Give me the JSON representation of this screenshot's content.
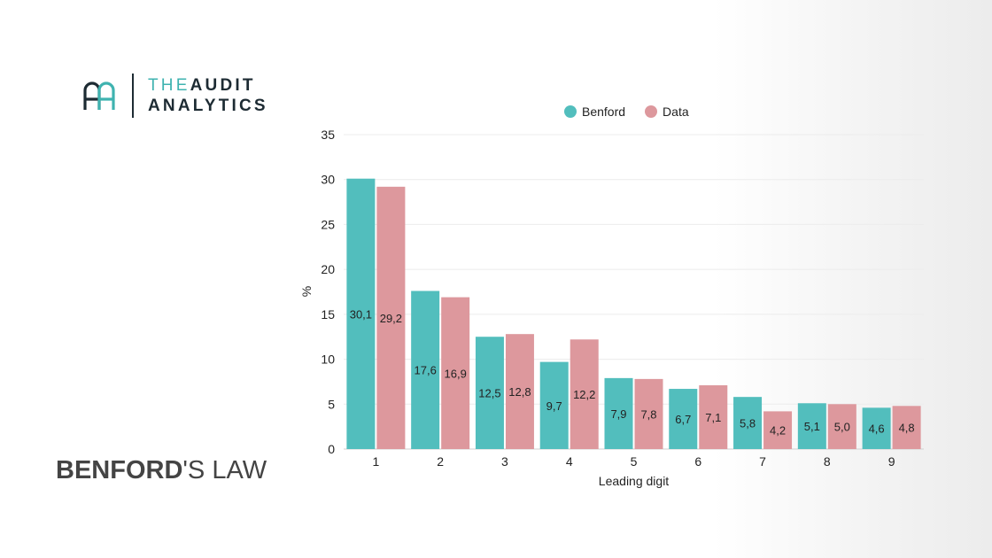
{
  "logo": {
    "text_part1": "THE",
    "text_part2": "AUDIT",
    "text_line2": "ANALYTICS",
    "colors": {
      "teal": "#3fb3b0",
      "dark": "#1d2b33"
    }
  },
  "page_title": {
    "bold": "BENFORD",
    "regular": "'S LAW"
  },
  "chart_data": {
    "type": "bar",
    "categories": [
      "1",
      "2",
      "3",
      "4",
      "5",
      "6",
      "7",
      "8",
      "9"
    ],
    "series": [
      {
        "name": "Benford",
        "color": "#52bebd",
        "values": [
          30.1,
          17.6,
          12.5,
          9.7,
          7.9,
          6.7,
          5.8,
          5.1,
          4.6
        ],
        "labels": [
          "30,1",
          "17,6",
          "12,5",
          "9,7",
          "7,9",
          "6,7",
          "5,8",
          "5,1",
          "4,6"
        ]
      },
      {
        "name": "Data",
        "color": "#dd989d",
        "values": [
          29.2,
          16.9,
          12.8,
          12.2,
          7.8,
          7.1,
          4.2,
          5.0,
          4.8
        ],
        "labels": [
          "29,2",
          "16,9",
          "12,8",
          "12,2",
          "7,8",
          "7,1",
          "4,2",
          "5,0",
          "4,8"
        ]
      }
    ],
    "xlabel": "Leading digit",
    "ylabel": "%",
    "ylim": [
      0,
      35
    ],
    "yticks": [
      "0",
      "5",
      "10",
      "15",
      "20",
      "25",
      "30",
      "35"
    ],
    "grid": true,
    "legend": "top-right"
  }
}
